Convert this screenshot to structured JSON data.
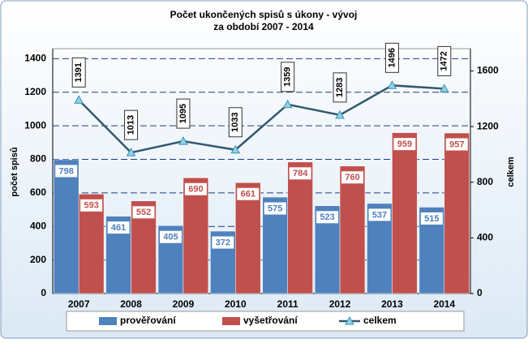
{
  "chart_data": {
    "type": "bar-line",
    "title": [
      "Počet  ukončených spisů s úkony - vývoj",
      "za období 2007 - 2014"
    ],
    "y_label": "počet spisů",
    "y2_label": "celkem",
    "categories": [
      "2007",
      "2008",
      "2009",
      "2010",
      "2011",
      "2012",
      "2013",
      "2014"
    ],
    "series": [
      {
        "name": "prověřování",
        "type": "bar",
        "color": "#4f81bd",
        "values": [
          798,
          461,
          405,
          372,
          575,
          523,
          537,
          515
        ]
      },
      {
        "name": "vyšetřování",
        "type": "bar",
        "color": "#c0504d",
        "values": [
          593,
          552,
          690,
          661,
          784,
          760,
          959,
          957
        ]
      },
      {
        "name": "celkem",
        "type": "line",
        "axis": "y2",
        "color": "#31596e",
        "values": [
          1391,
          1013,
          1095,
          1033,
          1359,
          1283,
          1496,
          1472
        ]
      }
    ],
    "ylim": [
      0,
      1460
    ],
    "yticks": [
      0,
      200,
      400,
      600,
      800,
      1000,
      1200,
      1400
    ],
    "y2lim": [
      0,
      1760
    ],
    "y2ticks": [
      0,
      400,
      800,
      1200,
      1600
    ],
    "grid": true,
    "legend": "bottom"
  }
}
